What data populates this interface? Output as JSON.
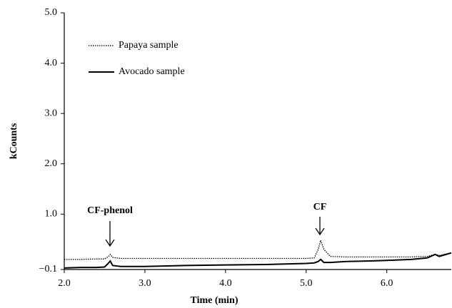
{
  "chart_data": {
    "type": "line",
    "x_label": "Time (min)",
    "y_label": "kCounts",
    "x": [
      2.0,
      2.2,
      2.4,
      2.5,
      2.55,
      2.57,
      2.6,
      2.7,
      3.0,
      3.5,
      4.0,
      4.5,
      5.0,
      5.1,
      5.15,
      5.18,
      5.22,
      5.3,
      5.5,
      5.8,
      6.0,
      6.3,
      6.5,
      6.6,
      6.65,
      6.8
    ],
    "series": [
      {
        "name": "Papaya sample",
        "color": "#000000",
        "style": "dotted",
        "values": [
          0.1,
          0.1,
          0.11,
          0.11,
          0.16,
          0.2,
          0.14,
          0.12,
          0.12,
          0.12,
          0.12,
          0.12,
          0.12,
          0.13,
          0.3,
          0.48,
          0.3,
          0.16,
          0.15,
          0.15,
          0.15,
          0.15,
          0.16,
          0.2,
          0.18,
          0.23
        ]
      },
      {
        "name": "Avocado sample",
        "color": "#000000",
        "style": "solid",
        "values": [
          -0.07,
          -0.06,
          -0.06,
          -0.05,
          0.03,
          0.07,
          -0.02,
          -0.04,
          -0.04,
          -0.02,
          -0.01,
          0.0,
          0.02,
          0.03,
          0.06,
          0.1,
          0.04,
          0.04,
          0.06,
          0.07,
          0.08,
          0.1,
          0.13,
          0.2,
          0.16,
          0.23
        ]
      }
    ],
    "xlim": [
      2.0,
      6.8
    ],
    "xticks": [
      {
        "value": 2,
        "label": "2.0"
      },
      {
        "value": 3,
        "label": "3.0"
      },
      {
        "value": 4,
        "label": "4.0"
      },
      {
        "value": 5,
        "label": "5.0"
      },
      {
        "value": 6,
        "label": "6.0"
      }
    ],
    "ylim": [
      -0.1,
      5.0
    ],
    "yticks": [
      {
        "value": -0.1,
        "label": "−0.1"
      },
      {
        "value": 1,
        "label": "1.0"
      },
      {
        "value": 2,
        "label": "2.0"
      },
      {
        "value": 3,
        "label": "3.0"
      },
      {
        "value": 4,
        "label": "4.0"
      },
      {
        "value": 5,
        "label": "5.0"
      }
    ],
    "annotations": [
      "CF-phenol",
      "CF"
    ],
    "legend": "upper-left",
    "grid": false
  }
}
